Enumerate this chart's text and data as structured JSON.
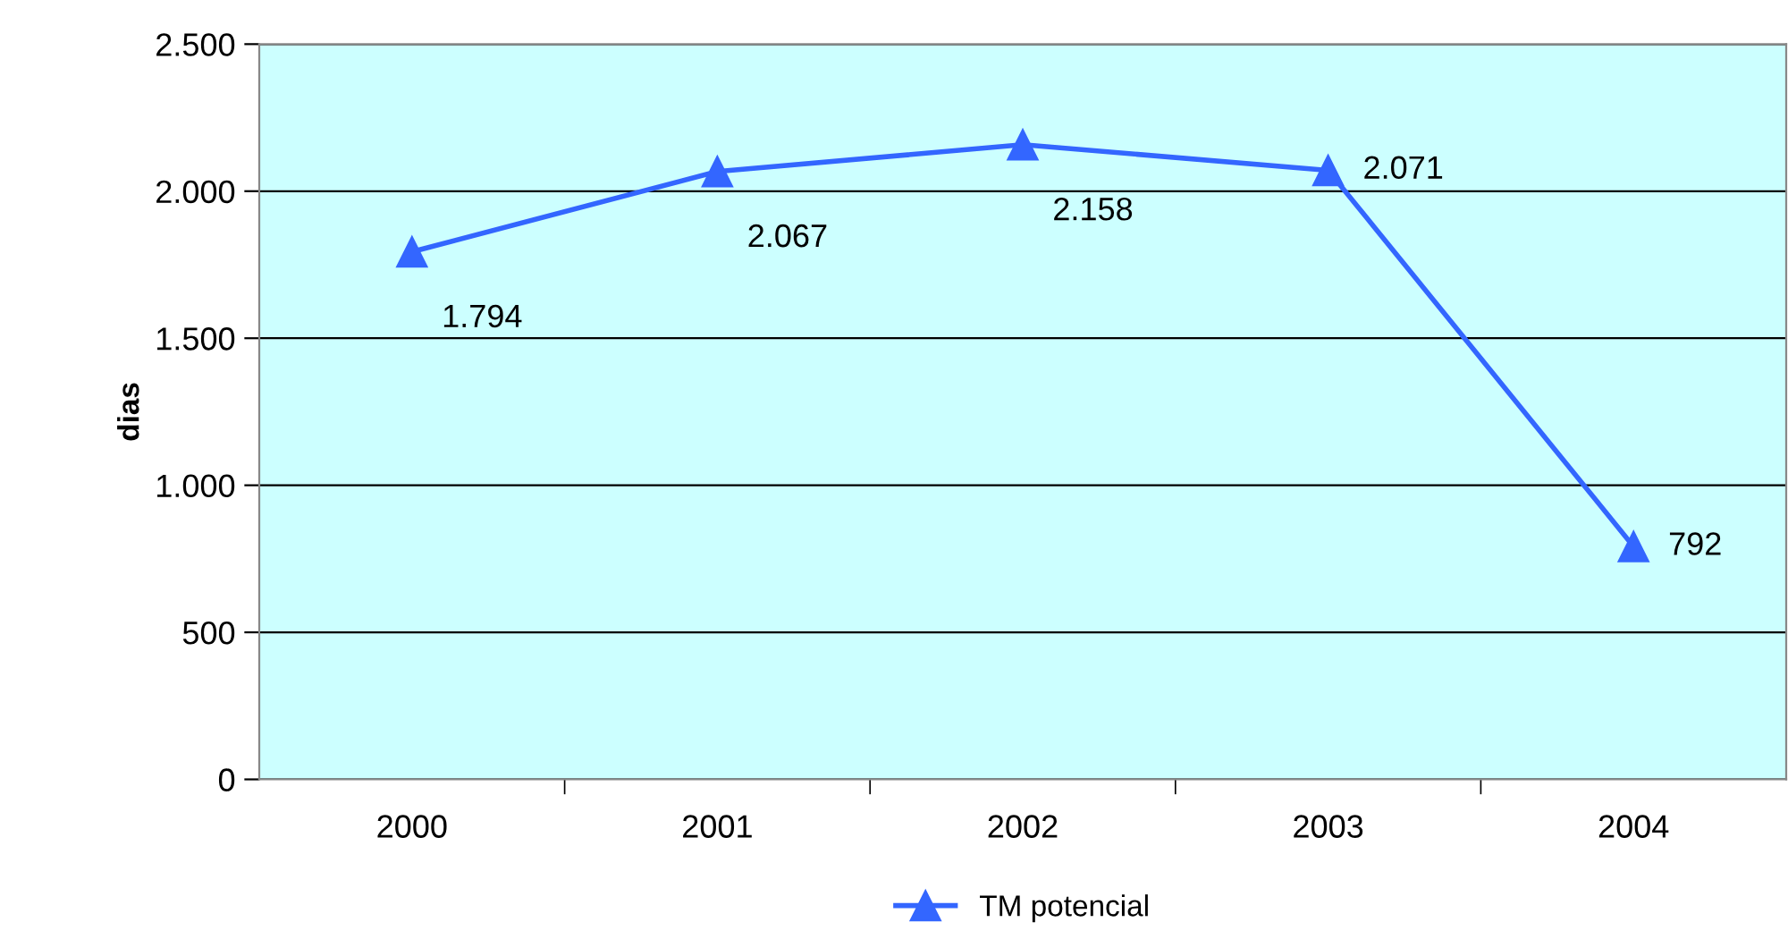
{
  "chart_data": {
    "type": "line",
    "ylabel": "dias",
    "categories": [
      "2000",
      "2001",
      "2002",
      "2003",
      "2004"
    ],
    "series": [
      {
        "name": "TM potencial",
        "color": "#3366ff",
        "values": [
          1794,
          2067,
          2158,
          2071,
          792
        ],
        "value_labels": [
          "1.794",
          "2.067",
          "2.158",
          "2.071",
          "792"
        ]
      }
    ],
    "ylim": [
      0,
      2500
    ],
    "yticks": [
      0,
      {
        "value": 500,
        "label": "500"
      },
      {
        "value": 1000,
        "label": "1.000"
      },
      {
        "value": 1500,
        "label": "1.500"
      },
      {
        "value": 2000,
        "label": "2.000"
      },
      {
        "value": 2500,
        "label": "2.500"
      }
    ],
    "grid": "y",
    "legend": "bottom",
    "marker": "triangle",
    "line_style": "solid"
  }
}
